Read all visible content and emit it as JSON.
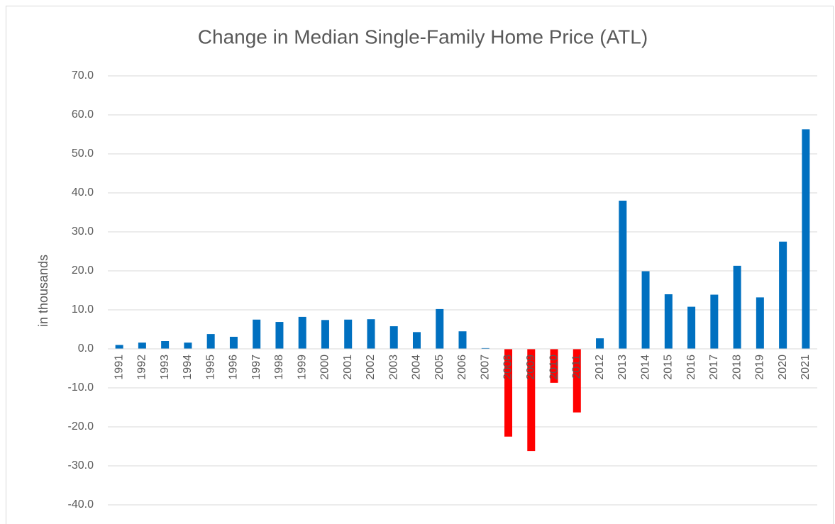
{
  "chart_data": {
    "type": "bar",
    "title": "Change in Median Single-Family Home Price (ATL)",
    "y_label": "in thousands",
    "categories": [
      "1991",
      "1992",
      "1993",
      "1994",
      "1995",
      "1996",
      "1997",
      "1998",
      "1999",
      "2000",
      "2001",
      "2002",
      "2003",
      "2004",
      "2005",
      "2006",
      "2007",
      "2008",
      "2009",
      "2010",
      "2011",
      "2012",
      "2013",
      "2014",
      "2015",
      "2016",
      "2017",
      "2018",
      "2019",
      "2020",
      "2021"
    ],
    "values": [
      1.0,
      1.6,
      2.0,
      1.6,
      3.8,
      3.1,
      7.5,
      6.9,
      8.2,
      7.4,
      7.5,
      7.6,
      5.8,
      4.3,
      10.2,
      4.5,
      0.2,
      -22.5,
      -26.2,
      -8.7,
      -16.3,
      2.7,
      38.0,
      19.9,
      14.0,
      10.8,
      13.9,
      21.3,
      13.2,
      27.5,
      56.3
    ],
    "colors": [
      "#0070c0",
      "#0070c0",
      "#0070c0",
      "#0070c0",
      "#0070c0",
      "#0070c0",
      "#0070c0",
      "#0070c0",
      "#0070c0",
      "#0070c0",
      "#0070c0",
      "#0070c0",
      "#0070c0",
      "#0070c0",
      "#0070c0",
      "#0070c0",
      "#0070c0",
      "#ff0000",
      "#ff0000",
      "#ff0000",
      "#ff0000",
      "#0070c0",
      "#0070c0",
      "#0070c0",
      "#0070c0",
      "#0070c0",
      "#0070c0",
      "#0070c0",
      "#0070c0",
      "#0070c0",
      "#0070c0"
    ],
    "ylim": [
      -40,
      70
    ],
    "yticks": [
      {
        "value": -40,
        "label": "-40.0"
      },
      {
        "value": -30,
        "label": "-30.0"
      },
      {
        "value": -20,
        "label": "-20.0"
      },
      {
        "value": -10,
        "label": "-10.0"
      },
      {
        "value": 0,
        "label": "0.0"
      },
      {
        "value": 10,
        "label": "10.0"
      },
      {
        "value": 20,
        "label": "20.0"
      },
      {
        "value": 30,
        "label": "30.0"
      },
      {
        "value": 40,
        "label": "40.0"
      },
      {
        "value": 50,
        "label": "50.0"
      },
      {
        "value": 60,
        "label": "60.0"
      },
      {
        "value": 70,
        "label": "70.0"
      }
    ],
    "grid": true
  }
}
